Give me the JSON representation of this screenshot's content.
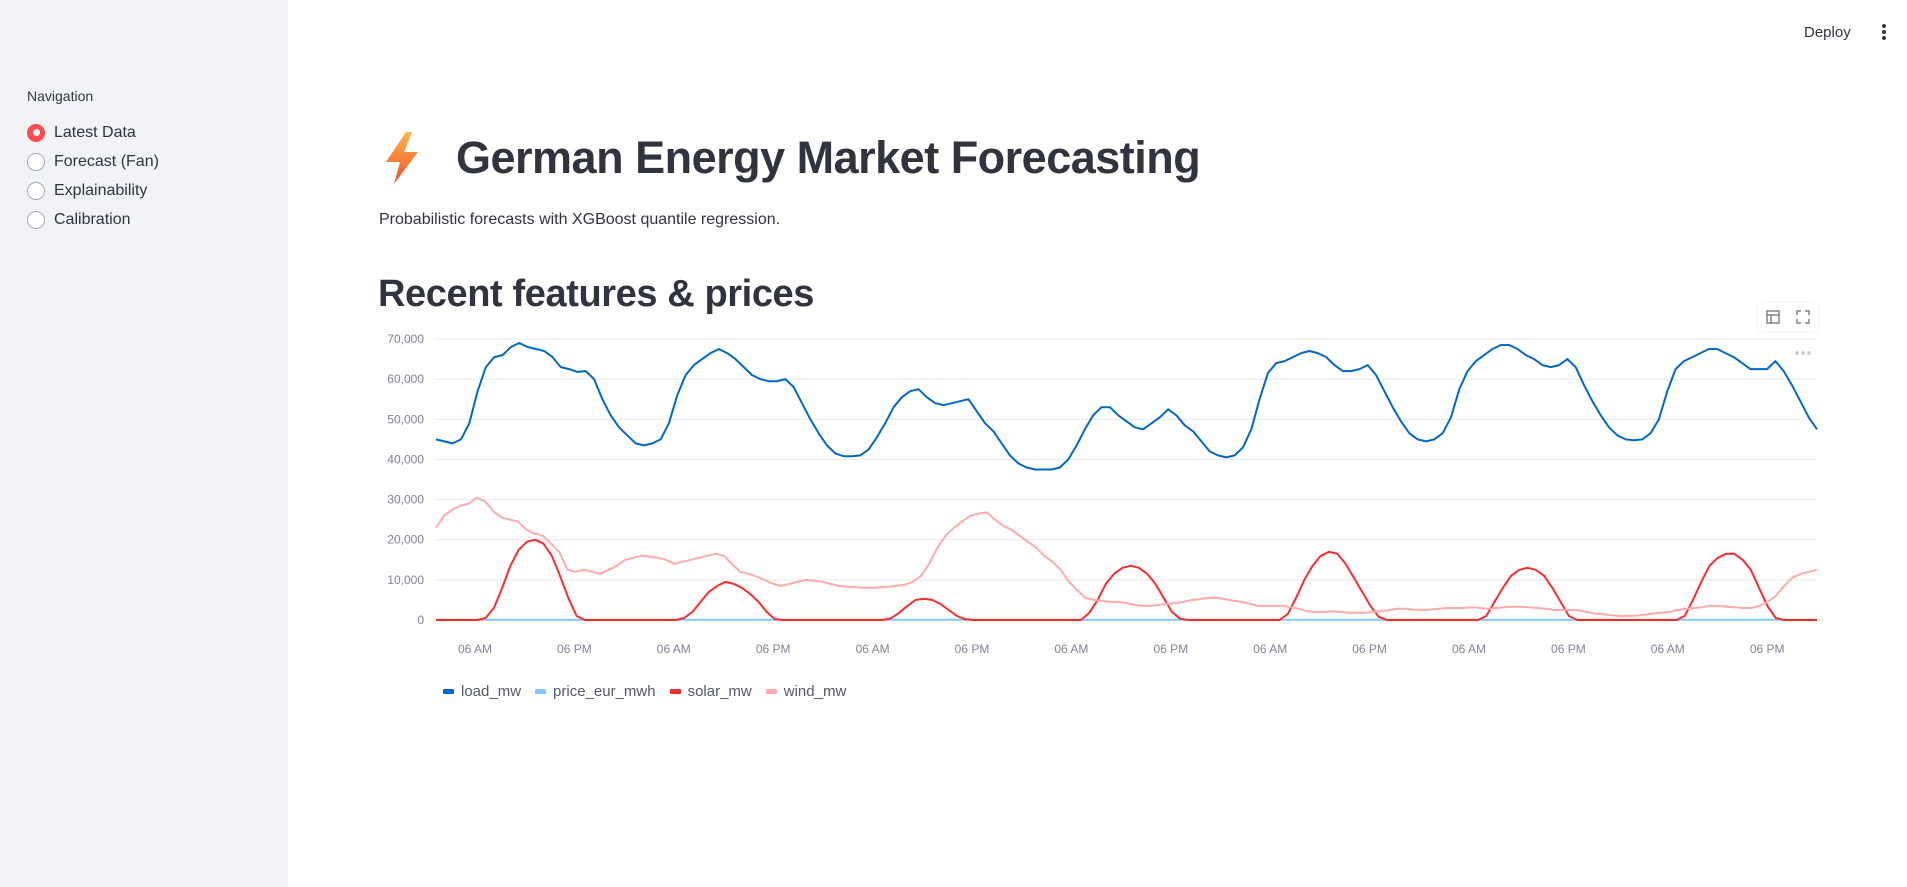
{
  "sidebar": {
    "nav_label": "Navigation",
    "items": [
      {
        "label": "Latest Data",
        "checked": true
      },
      {
        "label": "Forecast (Fan)",
        "checked": false
      },
      {
        "label": "Explainability",
        "checked": false
      },
      {
        "label": "Calibration",
        "checked": false
      }
    ]
  },
  "header": {
    "deploy_label": "Deploy",
    "menu_icon": "kebab-menu-icon"
  },
  "main": {
    "title_icon": "lightning-bolt-icon",
    "title": "German Energy Market Forecasting",
    "subtitle": "Probabilistic forecasts with XGBoost quantile regression.",
    "section_title": "Recent features & prices",
    "toolbar_icons": [
      "table-view-icon",
      "fullscreen-icon"
    ],
    "more_icon": "more-options-icon"
  },
  "chart_data": {
    "type": "line",
    "xlabel": "",
    "ylabel": "",
    "ylim": [
      0,
      70000
    ],
    "yticks": [
      "0",
      "10,000",
      "20,000",
      "30,000",
      "40,000",
      "50,000",
      "60,000",
      "70,000"
    ],
    "xticks": [
      "06 AM",
      "06 PM",
      "06 AM",
      "06 PM",
      "06 AM",
      "06 PM",
      "06 AM",
      "06 PM",
      "06 AM",
      "06 PM",
      "06 AM",
      "06 PM",
      "06 AM",
      "06 PM"
    ],
    "grid": true,
    "legend_position": "bottom-left",
    "series": [
      {
        "name": "load_mw",
        "color": "#0068c9",
        "values": [
          45000,
          44500,
          44000,
          45000,
          49000,
          57000,
          63000,
          65500,
          66000,
          68000,
          69000,
          68000,
          67500,
          67000,
          65500,
          63000,
          62500,
          61800,
          62000,
          60000,
          55000,
          51000,
          48000,
          46000,
          44000,
          43500,
          44000,
          45000,
          49000,
          56000,
          61000,
          63500,
          65000,
          66500,
          67500,
          66500,
          65000,
          63000,
          61000,
          60000,
          59500,
          59500,
          60000,
          58000,
          54000,
          50000,
          46500,
          43500,
          41500,
          40800,
          40800,
          41000,
          42500,
          45500,
          49000,
          53000,
          55500,
          57000,
          57500,
          55500,
          54000,
          53500,
          54000,
          54500,
          55000,
          52000,
          49000,
          47000,
          44000,
          41000,
          39000,
          38000,
          37500,
          37500,
          37500,
          38000,
          40000,
          43500,
          47500,
          51000,
          53000,
          53000,
          51000,
          49500,
          48000,
          47500,
          49000,
          50500,
          52500,
          51000,
          48500,
          47000,
          44500,
          42000,
          41000,
          40500,
          41000,
          43000,
          47500,
          55000,
          61500,
          64000,
          64500,
          65500,
          66500,
          67000,
          66500,
          65500,
          63500,
          62000,
          62000,
          62500,
          63500,
          61000,
          57000,
          53000,
          49500,
          46500,
          45000,
          44500,
          45000,
          46500,
          50500,
          57500,
          62000,
          64500,
          66000,
          67500,
          68500,
          68500,
          67500,
          66000,
          65000,
          63500,
          63000,
          63500,
          65000,
          63000,
          58500,
          54500,
          51000,
          48000,
          46000,
          45000,
          44800,
          45000,
          46500,
          50000,
          57000,
          62500,
          64500,
          65500,
          66500,
          67500,
          67500,
          66500,
          65500,
          64000,
          62500,
          62500,
          62500,
          64500,
          62000,
          58500,
          54500,
          50500,
          47500
        ]
      },
      {
        "name": "price_eur_mwh",
        "color": "#83c9ff",
        "values": [
          80,
          80,
          80,
          80,
          80,
          80,
          80,
          80,
          80,
          80,
          80,
          80,
          80,
          80,
          80,
          80,
          80,
          80,
          80,
          80,
          80,
          80,
          80,
          80,
          80,
          80,
          80,
          80,
          80,
          80,
          80,
          80,
          80,
          80,
          80,
          80,
          80,
          80,
          80,
          80,
          80,
          80,
          80,
          80,
          80,
          80,
          80,
          80,
          80,
          80,
          80,
          80,
          80,
          80,
          80,
          80,
          80,
          80,
          80,
          80,
          80,
          80,
          80,
          80,
          80,
          80,
          80,
          80,
          80,
          80,
          80,
          80,
          80,
          80,
          80,
          80,
          80,
          80,
          80,
          80,
          80,
          80,
          80,
          80,
          80,
          80,
          80,
          80,
          80,
          80,
          80,
          80,
          80,
          80,
          80,
          80,
          80,
          80,
          80,
          80,
          80,
          80,
          80,
          80,
          80,
          80,
          80,
          80,
          80,
          80,
          80,
          80,
          80,
          80,
          80,
          80,
          80,
          80,
          80,
          80,
          80,
          80,
          80,
          80,
          80,
          80,
          80,
          80,
          80,
          80,
          80,
          80,
          80,
          80,
          80,
          80,
          80,
          80,
          80,
          80,
          80,
          80,
          80,
          80,
          80,
          80,
          80,
          80,
          80,
          80,
          80,
          80,
          80,
          80,
          80,
          80,
          80,
          80,
          80,
          80,
          80,
          80,
          80,
          80,
          80,
          80,
          80,
          80,
          80
        ]
      },
      {
        "name": "solar_mw",
        "color": "#ff2b2b",
        "values": [
          0,
          0,
          0,
          0,
          0,
          0,
          500,
          3000,
          8000,
          13500,
          17500,
          19500,
          20000,
          19000,
          16000,
          11000,
          5500,
          1000,
          0,
          0,
          0,
          0,
          0,
          0,
          0,
          0,
          0,
          0,
          0,
          0,
          500,
          2000,
          4500,
          7000,
          8500,
          9500,
          9000,
          8000,
          6500,
          4500,
          2000,
          200,
          0,
          0,
          0,
          0,
          0,
          0,
          0,
          0,
          0,
          0,
          0,
          0,
          0,
          400,
          1800,
          3500,
          5000,
          5300,
          5000,
          4000,
          2500,
          1000,
          200,
          0,
          0,
          0,
          0,
          0,
          0,
          0,
          0,
          0,
          0,
          0,
          0,
          0,
          0,
          1800,
          5000,
          9000,
          11500,
          13000,
          13500,
          13000,
          11500,
          9000,
          5500,
          2000,
          300,
          0,
          0,
          0,
          0,
          0,
          0,
          0,
          0,
          0,
          0,
          0,
          0,
          1500,
          5500,
          10000,
          13500,
          16000,
          17000,
          16500,
          14000,
          10500,
          7000,
          3500,
          800,
          0,
          0,
          0,
          0,
          0,
          0,
          0,
          0,
          0,
          0,
          0,
          0,
          1000,
          4500,
          8000,
          11000,
          12500,
          13000,
          12500,
          11000,
          8000,
          4500,
          1000,
          0,
          0,
          0,
          0,
          0,
          0,
          0,
          0,
          0,
          0,
          0,
          0,
          0,
          1000,
          5000,
          9500,
          13500,
          15500,
          16500,
          16500,
          15000,
          12500,
          8000,
          3500,
          500,
          0,
          0,
          0,
          0,
          0
        ]
      },
      {
        "name": "wind_mw",
        "color": "#ffabab",
        "values": [
          23000,
          26000,
          27500,
          28500,
          29000,
          30500,
          29500,
          27000,
          25500,
          25000,
          24500,
          22500,
          21500,
          21000,
          19000,
          17000,
          12500,
          12000,
          12500,
          12000,
          11500,
          12500,
          13500,
          15000,
          15500,
          16000,
          15800,
          15500,
          15000,
          14000,
          14500,
          15000,
          15500,
          16000,
          16500,
          16000,
          14000,
          12000,
          11500,
          10800,
          10000,
          9000,
          8500,
          9000,
          9500,
          10000,
          9800,
          9500,
          9000,
          8500,
          8300,
          8200,
          8000,
          8000,
          8200,
          8300,
          8500,
          8800,
          9500,
          11000,
          14000,
          18000,
          21000,
          23000,
          24500,
          26000,
          26500,
          26800,
          25000,
          23500,
          22500,
          21000,
          19500,
          18000,
          16000,
          14500,
          12500,
          9500,
          7500,
          5500,
          5000,
          4800,
          4500,
          4500,
          4200,
          3800,
          3500,
          3500,
          3800,
          4000,
          4200,
          4500,
          5000,
          5200,
          5500,
          5500,
          5200,
          4800,
          4500,
          4000,
          3500,
          3500,
          3500,
          3500,
          3200,
          2800,
          2200,
          2000,
          2000,
          2200,
          2000,
          1800,
          1800,
          1800,
          2000,
          2200,
          2500,
          2800,
          2800,
          2600,
          2500,
          2600,
          2800,
          3000,
          3000,
          3000,
          3200,
          3000,
          2800,
          3000,
          3200,
          3300,
          3300,
          3200,
          3000,
          2800,
          2500,
          2500,
          2500,
          2400,
          2000,
          1600,
          1400,
          1200,
          1000,
          1000,
          1100,
          1300,
          1600,
          1800,
          2000,
          2500,
          2800,
          3000,
          3200,
          3500,
          3500,
          3300,
          3200,
          3000,
          3000,
          3500,
          4500,
          6000,
          8500,
          10500,
          11500,
          12000,
          12500
        ]
      }
    ]
  }
}
